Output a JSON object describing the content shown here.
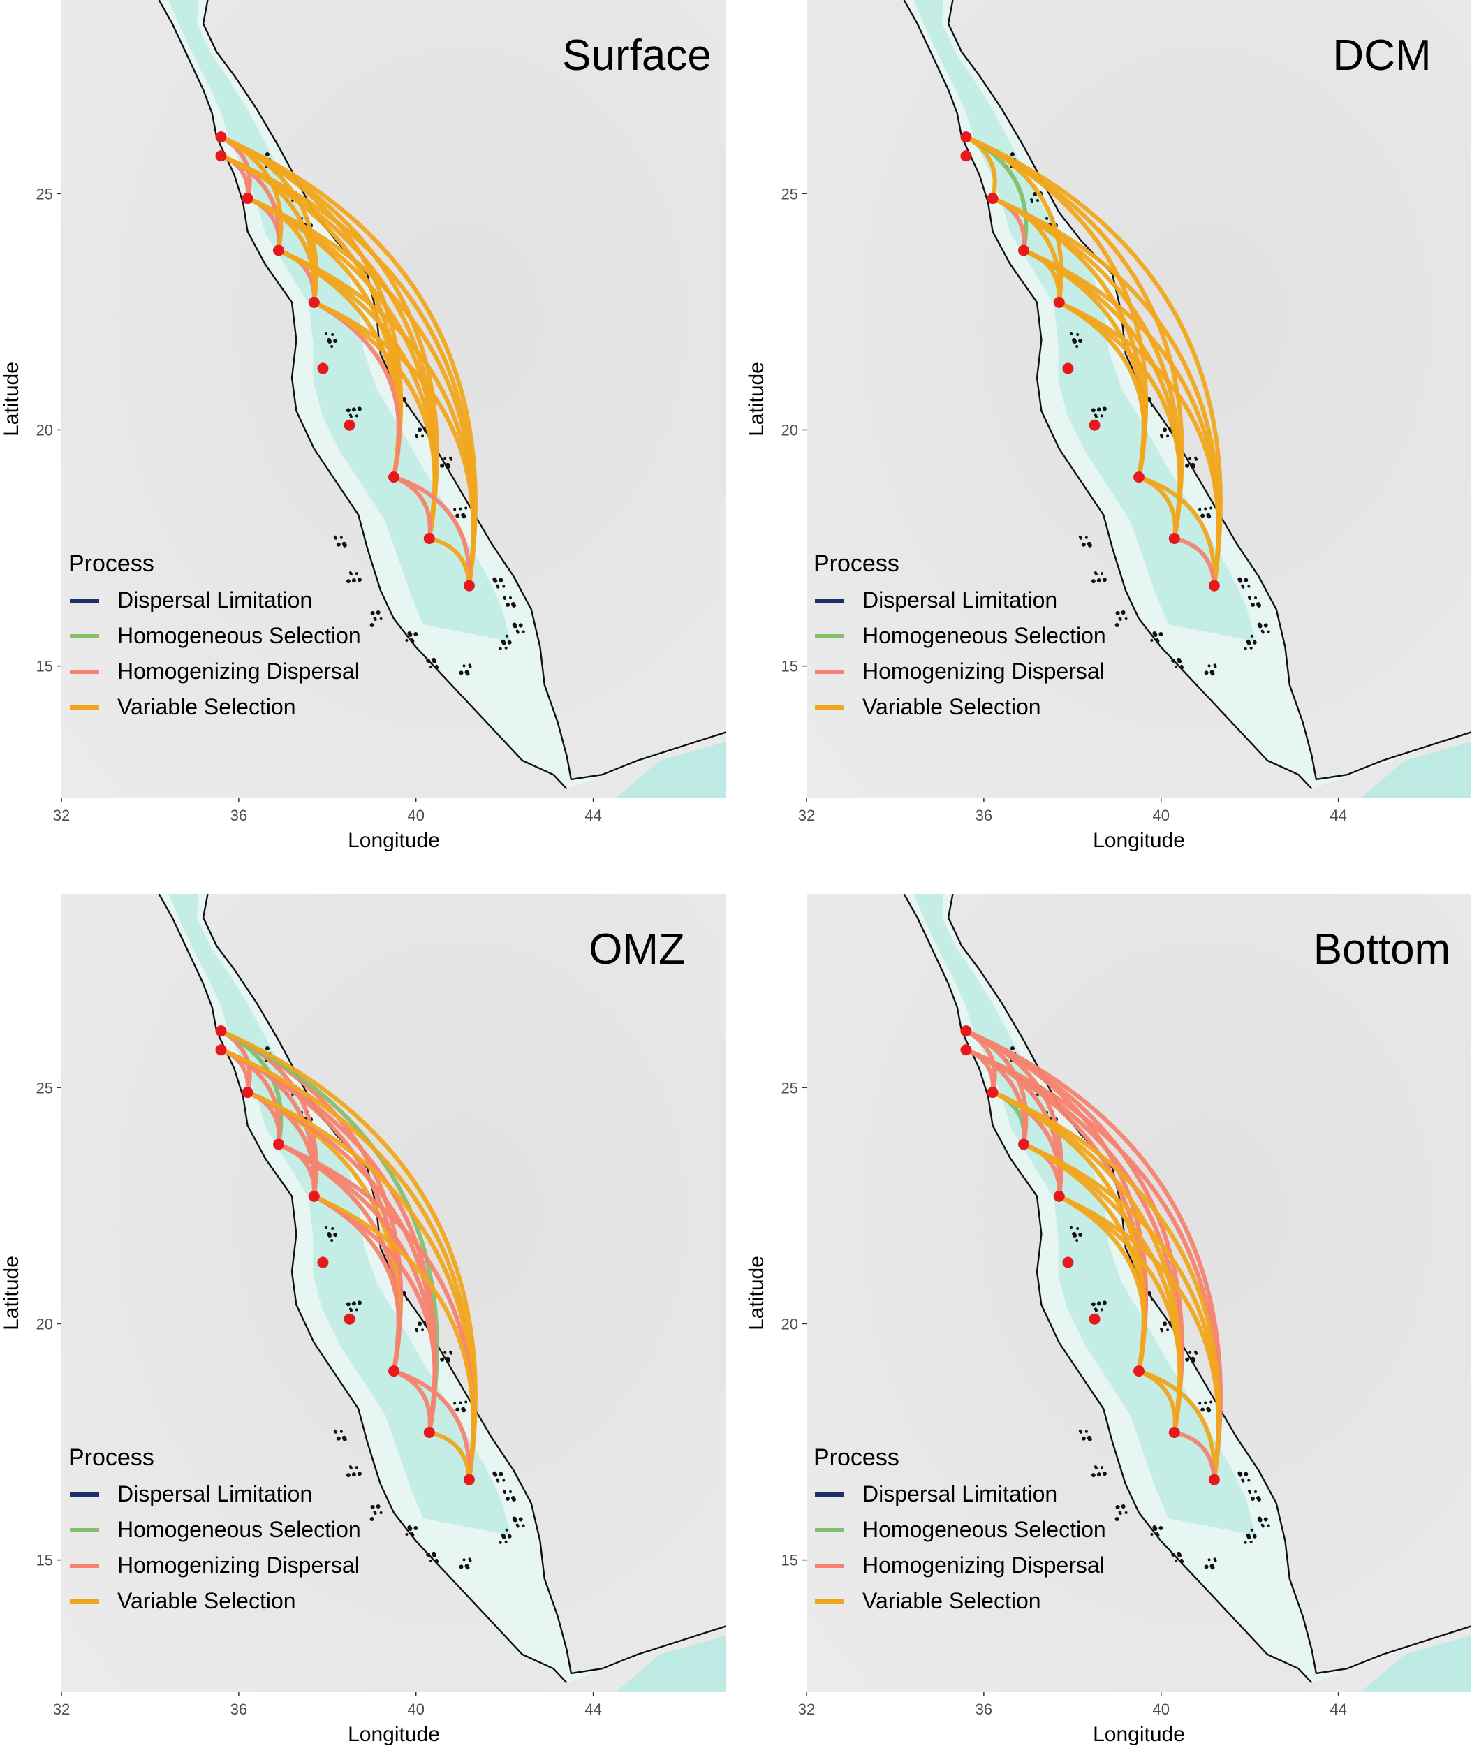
{
  "figure": {
    "axes": {
      "xlabel": "Longitude",
      "ylabel": "Latitude",
      "xlim": [
        32,
        47
      ],
      "ylim": [
        12.2,
        29.1
      ],
      "xticks": [
        32,
        36,
        40,
        44
      ],
      "yticks": [
        15,
        20,
        25
      ],
      "xtick_labels": [
        "32",
        "36",
        "40",
        "44"
      ],
      "ytick_labels": [
        "15",
        "20",
        "25"
      ]
    },
    "legend": {
      "title": "Process",
      "placement": "bottom-left",
      "items": [
        {
          "label": "Dispersal Limitation",
          "color": "#1b2f6b"
        },
        {
          "label": "Homogeneous Selection",
          "color": "#86bf6b"
        },
        {
          "label": "Homogenizing Dispersal",
          "color": "#f5836f"
        },
        {
          "label": "Variable Selection",
          "color": "#f1a51e"
        }
      ]
    },
    "colors": {
      "sea": "#bdebe3",
      "sea_light": "#e8f6f3",
      "land": "#e9e9e9",
      "coastline": "#111111",
      "site": "#e8191c"
    }
  },
  "chart_data": [
    {
      "type": "map",
      "title": "Surface",
      "sites": [
        {
          "lon": 35.6,
          "lat": 26.2
        },
        {
          "lon": 35.6,
          "lat": 25.8
        },
        {
          "lon": 36.2,
          "lat": 24.9
        },
        {
          "lon": 36.9,
          "lat": 23.8
        },
        {
          "lon": 37.7,
          "lat": 22.7
        },
        {
          "lon": 37.9,
          "lat": 21.3
        },
        {
          "lon": 38.5,
          "lat": 20.1
        },
        {
          "lon": 39.5,
          "lat": 19.0
        },
        {
          "lon": 40.3,
          "lat": 17.7
        },
        {
          "lon": 41.2,
          "lat": 16.7
        }
      ],
      "links": [
        {
          "from": 0,
          "to": 2,
          "process": "Homogenizing Dispersal"
        },
        {
          "from": 1,
          "to": 2,
          "process": "Homogenizing Dispersal"
        },
        {
          "from": 2,
          "to": 3,
          "process": "Homogenizing Dispersal"
        },
        {
          "from": 1,
          "to": 3,
          "process": "Homogenizing Dispersal"
        },
        {
          "from": 3,
          "to": 4,
          "process": "Homogenizing Dispersal"
        },
        {
          "from": 2,
          "to": 4,
          "process": "Variable Selection"
        },
        {
          "from": 0,
          "to": 3,
          "process": "Variable Selection"
        },
        {
          "from": 0,
          "to": 4,
          "process": "Variable Selection"
        },
        {
          "from": 1,
          "to": 4,
          "process": "Variable Selection"
        },
        {
          "from": 0,
          "to": 7,
          "process": "Variable Selection"
        },
        {
          "from": 1,
          "to": 7,
          "process": "Variable Selection"
        },
        {
          "from": 2,
          "to": 7,
          "process": "Variable Selection"
        },
        {
          "from": 3,
          "to": 7,
          "process": "Variable Selection"
        },
        {
          "from": 4,
          "to": 7,
          "process": "Homogenizing Dispersal"
        },
        {
          "from": 0,
          "to": 8,
          "process": "Variable Selection"
        },
        {
          "from": 1,
          "to": 8,
          "process": "Variable Selection"
        },
        {
          "from": 2,
          "to": 8,
          "process": "Variable Selection"
        },
        {
          "from": 3,
          "to": 8,
          "process": "Variable Selection"
        },
        {
          "from": 4,
          "to": 8,
          "process": "Variable Selection"
        },
        {
          "from": 0,
          "to": 9,
          "process": "Variable Selection"
        },
        {
          "from": 1,
          "to": 9,
          "process": "Variable Selection"
        },
        {
          "from": 2,
          "to": 9,
          "process": "Variable Selection"
        },
        {
          "from": 3,
          "to": 9,
          "process": "Variable Selection"
        },
        {
          "from": 4,
          "to": 9,
          "process": "Variable Selection"
        },
        {
          "from": 7,
          "to": 8,
          "process": "Homogenizing Dispersal"
        },
        {
          "from": 7,
          "to": 9,
          "process": "Homogenizing Dispersal"
        },
        {
          "from": 8,
          "to": 9,
          "process": "Variable Selection"
        }
      ]
    },
    {
      "type": "map",
      "title": "DCM",
      "sites": [
        {
          "lon": 35.6,
          "lat": 26.2
        },
        {
          "lon": 35.6,
          "lat": 25.8
        },
        {
          "lon": 36.2,
          "lat": 24.9
        },
        {
          "lon": 36.9,
          "lat": 23.8
        },
        {
          "lon": 37.7,
          "lat": 22.7
        },
        {
          "lon": 37.9,
          "lat": 21.3
        },
        {
          "lon": 38.5,
          "lat": 20.1
        },
        {
          "lon": 39.5,
          "lat": 19.0
        },
        {
          "lon": 40.3,
          "lat": 17.7
        },
        {
          "lon": 41.2,
          "lat": 16.7
        }
      ],
      "links": [
        {
          "from": 0,
          "to": 2,
          "process": "Variable Selection"
        },
        {
          "from": 0,
          "to": 3,
          "process": "Homogeneous Selection"
        },
        {
          "from": 2,
          "to": 3,
          "process": "Homogenizing Dispersal"
        },
        {
          "from": 3,
          "to": 4,
          "process": "Variable Selection"
        },
        {
          "from": 2,
          "to": 4,
          "process": "Variable Selection"
        },
        {
          "from": 0,
          "to": 4,
          "process": "Variable Selection"
        },
        {
          "from": 0,
          "to": 7,
          "process": "Variable Selection"
        },
        {
          "from": 2,
          "to": 7,
          "process": "Variable Selection"
        },
        {
          "from": 3,
          "to": 7,
          "process": "Variable Selection"
        },
        {
          "from": 4,
          "to": 7,
          "process": "Variable Selection"
        },
        {
          "from": 0,
          "to": 8,
          "process": "Variable Selection"
        },
        {
          "from": 2,
          "to": 8,
          "process": "Variable Selection"
        },
        {
          "from": 3,
          "to": 8,
          "process": "Variable Selection"
        },
        {
          "from": 4,
          "to": 8,
          "process": "Variable Selection"
        },
        {
          "from": 0,
          "to": 9,
          "process": "Variable Selection"
        },
        {
          "from": 2,
          "to": 9,
          "process": "Variable Selection"
        },
        {
          "from": 3,
          "to": 9,
          "process": "Variable Selection"
        },
        {
          "from": 4,
          "to": 9,
          "process": "Variable Selection"
        },
        {
          "from": 7,
          "to": 8,
          "process": "Variable Selection"
        },
        {
          "from": 7,
          "to": 9,
          "process": "Variable Selection"
        },
        {
          "from": 8,
          "to": 9,
          "process": "Homogenizing Dispersal"
        }
      ]
    },
    {
      "type": "map",
      "title": "OMZ",
      "sites": [
        {
          "lon": 35.6,
          "lat": 26.2
        },
        {
          "lon": 35.6,
          "lat": 25.8
        },
        {
          "lon": 36.2,
          "lat": 24.9
        },
        {
          "lon": 36.9,
          "lat": 23.8
        },
        {
          "lon": 37.7,
          "lat": 22.7
        },
        {
          "lon": 37.9,
          "lat": 21.3
        },
        {
          "lon": 38.5,
          "lat": 20.1
        },
        {
          "lon": 39.5,
          "lat": 19.0
        },
        {
          "lon": 40.3,
          "lat": 17.7
        },
        {
          "lon": 41.2,
          "lat": 16.7
        }
      ],
      "links": [
        {
          "from": 0,
          "to": 2,
          "process": "Homogenizing Dispersal"
        },
        {
          "from": 1,
          "to": 2,
          "process": "Homogenizing Dispersal"
        },
        {
          "from": 0,
          "to": 3,
          "process": "Homogeneous Selection"
        },
        {
          "from": 1,
          "to": 3,
          "process": "Homogenizing Dispersal"
        },
        {
          "from": 2,
          "to": 3,
          "process": "Homogenizing Dispersal"
        },
        {
          "from": 3,
          "to": 4,
          "process": "Homogenizing Dispersal"
        },
        {
          "from": 2,
          "to": 4,
          "process": "Homogenizing Dispersal"
        },
        {
          "from": 0,
          "to": 4,
          "process": "Homogenizing Dispersal"
        },
        {
          "from": 1,
          "to": 4,
          "process": "Homogenizing Dispersal"
        },
        {
          "from": 0,
          "to": 7,
          "process": "Homogenizing Dispersal"
        },
        {
          "from": 1,
          "to": 7,
          "process": "Homogenizing Dispersal"
        },
        {
          "from": 2,
          "to": 7,
          "process": "Variable Selection"
        },
        {
          "from": 3,
          "to": 7,
          "process": "Homogenizing Dispersal"
        },
        {
          "from": 4,
          "to": 7,
          "process": "Homogenizing Dispersal"
        },
        {
          "from": 0,
          "to": 8,
          "process": "Homogeneous Selection"
        },
        {
          "from": 1,
          "to": 8,
          "process": "Homogenizing Dispersal"
        },
        {
          "from": 2,
          "to": 8,
          "process": "Homogenizing Dispersal"
        },
        {
          "from": 3,
          "to": 8,
          "process": "Homogenizing Dispersal"
        },
        {
          "from": 4,
          "to": 8,
          "process": "Homogenizing Dispersal"
        },
        {
          "from": 0,
          "to": 9,
          "process": "Variable Selection"
        },
        {
          "from": 1,
          "to": 9,
          "process": "Variable Selection"
        },
        {
          "from": 2,
          "to": 9,
          "process": "Variable Selection"
        },
        {
          "from": 3,
          "to": 9,
          "process": "Homogenizing Dispersal"
        },
        {
          "from": 4,
          "to": 9,
          "process": "Variable Selection"
        },
        {
          "from": 7,
          "to": 8,
          "process": "Homogenizing Dispersal"
        },
        {
          "from": 7,
          "to": 9,
          "process": "Homogenizing Dispersal"
        },
        {
          "from": 8,
          "to": 9,
          "process": "Variable Selection"
        }
      ]
    },
    {
      "type": "map",
      "title": "Bottom",
      "sites": [
        {
          "lon": 35.6,
          "lat": 26.2
        },
        {
          "lon": 35.6,
          "lat": 25.8
        },
        {
          "lon": 36.2,
          "lat": 24.9
        },
        {
          "lon": 36.9,
          "lat": 23.8
        },
        {
          "lon": 37.7,
          "lat": 22.7
        },
        {
          "lon": 37.9,
          "lat": 21.3
        },
        {
          "lon": 38.5,
          "lat": 20.1
        },
        {
          "lon": 39.5,
          "lat": 19.0
        },
        {
          "lon": 40.3,
          "lat": 17.7
        },
        {
          "lon": 41.2,
          "lat": 16.7
        }
      ],
      "links": [
        {
          "from": 0,
          "to": 2,
          "process": "Homogenizing Dispersal"
        },
        {
          "from": 1,
          "to": 2,
          "process": "Homogenizing Dispersal"
        },
        {
          "from": 2,
          "to": 3,
          "process": "Homogeneous Selection"
        },
        {
          "from": 1,
          "to": 3,
          "process": "Homogenizing Dispersal"
        },
        {
          "from": 0,
          "to": 3,
          "process": "Homogenizing Dispersal"
        },
        {
          "from": 3,
          "to": 4,
          "process": "Homogenizing Dispersal"
        },
        {
          "from": 2,
          "to": 4,
          "process": "Homogenizing Dispersal"
        },
        {
          "from": 0,
          "to": 4,
          "process": "Homogenizing Dispersal"
        },
        {
          "from": 1,
          "to": 4,
          "process": "Homogenizing Dispersal"
        },
        {
          "from": 0,
          "to": 7,
          "process": "Homogenizing Dispersal"
        },
        {
          "from": 1,
          "to": 7,
          "process": "Homogenizing Dispersal"
        },
        {
          "from": 2,
          "to": 7,
          "process": "Variable Selection"
        },
        {
          "from": 3,
          "to": 7,
          "process": "Variable Selection"
        },
        {
          "from": 4,
          "to": 7,
          "process": "Variable Selection"
        },
        {
          "from": 0,
          "to": 8,
          "process": "Homogenizing Dispersal"
        },
        {
          "from": 1,
          "to": 8,
          "process": "Homogenizing Dispersal"
        },
        {
          "from": 2,
          "to": 8,
          "process": "Variable Selection"
        },
        {
          "from": 3,
          "to": 8,
          "process": "Variable Selection"
        },
        {
          "from": 4,
          "to": 8,
          "process": "Variable Selection"
        },
        {
          "from": 0,
          "to": 9,
          "process": "Homogenizing Dispersal"
        },
        {
          "from": 1,
          "to": 9,
          "process": "Homogenizing Dispersal"
        },
        {
          "from": 2,
          "to": 9,
          "process": "Variable Selection"
        },
        {
          "from": 3,
          "to": 9,
          "process": "Variable Selection"
        },
        {
          "from": 4,
          "to": 9,
          "process": "Variable Selection"
        },
        {
          "from": 7,
          "to": 8,
          "process": "Variable Selection"
        },
        {
          "from": 7,
          "to": 9,
          "process": "Variable Selection"
        },
        {
          "from": 8,
          "to": 9,
          "process": "Homogenizing Dispersal"
        }
      ]
    }
  ]
}
